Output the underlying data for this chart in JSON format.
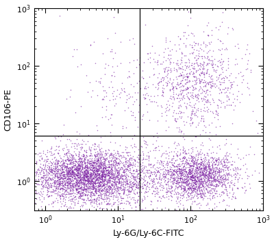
{
  "title": "",
  "xlabel": "Ly-6G/Ly-6C-FITC",
  "ylabel": "CD106-PE",
  "xlim": [
    0.7,
    1000
  ],
  "ylim": [
    0.3,
    1000
  ],
  "x_gate": 20,
  "y_gate": 6.0,
  "dot_color": "#7B1FA2",
  "dot_alpha": 0.65,
  "dot_size": 1.2,
  "background_color": "#ffffff",
  "seed": 42,
  "populations": [
    {
      "name": "lower_left_core",
      "n": 3000,
      "x_log_mean": 0.55,
      "x_log_std": 0.38,
      "y_log_mean": 0.08,
      "y_log_std": 0.22
    },
    {
      "name": "lower_left_spread",
      "n": 800,
      "x_log_mean": 0.85,
      "x_log_std": 0.45,
      "y_log_mean": 0.1,
      "y_log_std": 0.28
    },
    {
      "name": "lower_right_core",
      "n": 1400,
      "x_log_mean": 2.1,
      "x_log_std": 0.25,
      "y_log_mean": 0.08,
      "y_log_std": 0.2
    },
    {
      "name": "lower_right_spread",
      "n": 500,
      "x_log_mean": 2.0,
      "x_log_std": 0.38,
      "y_log_mean": 0.1,
      "y_log_std": 0.28
    },
    {
      "name": "upper_right_main",
      "n": 700,
      "x_log_mean": 2.05,
      "x_log_std": 0.3,
      "y_log_mean": 1.75,
      "y_log_std": 0.4
    },
    {
      "name": "upper_right_spread",
      "n": 200,
      "x_log_mean": 2.1,
      "x_log_std": 0.38,
      "y_log_mean": 1.5,
      "y_log_std": 0.5
    },
    {
      "name": "upper_left_sparse",
      "n": 90,
      "x_log_mean": 0.9,
      "x_log_std": 0.35,
      "y_log_mean": 1.8,
      "y_log_std": 0.45
    },
    {
      "name": "mid_upper_left",
      "n": 60,
      "x_log_mean": 1.1,
      "x_log_std": 0.3,
      "y_log_mean": 1.4,
      "y_log_std": 0.3
    }
  ]
}
